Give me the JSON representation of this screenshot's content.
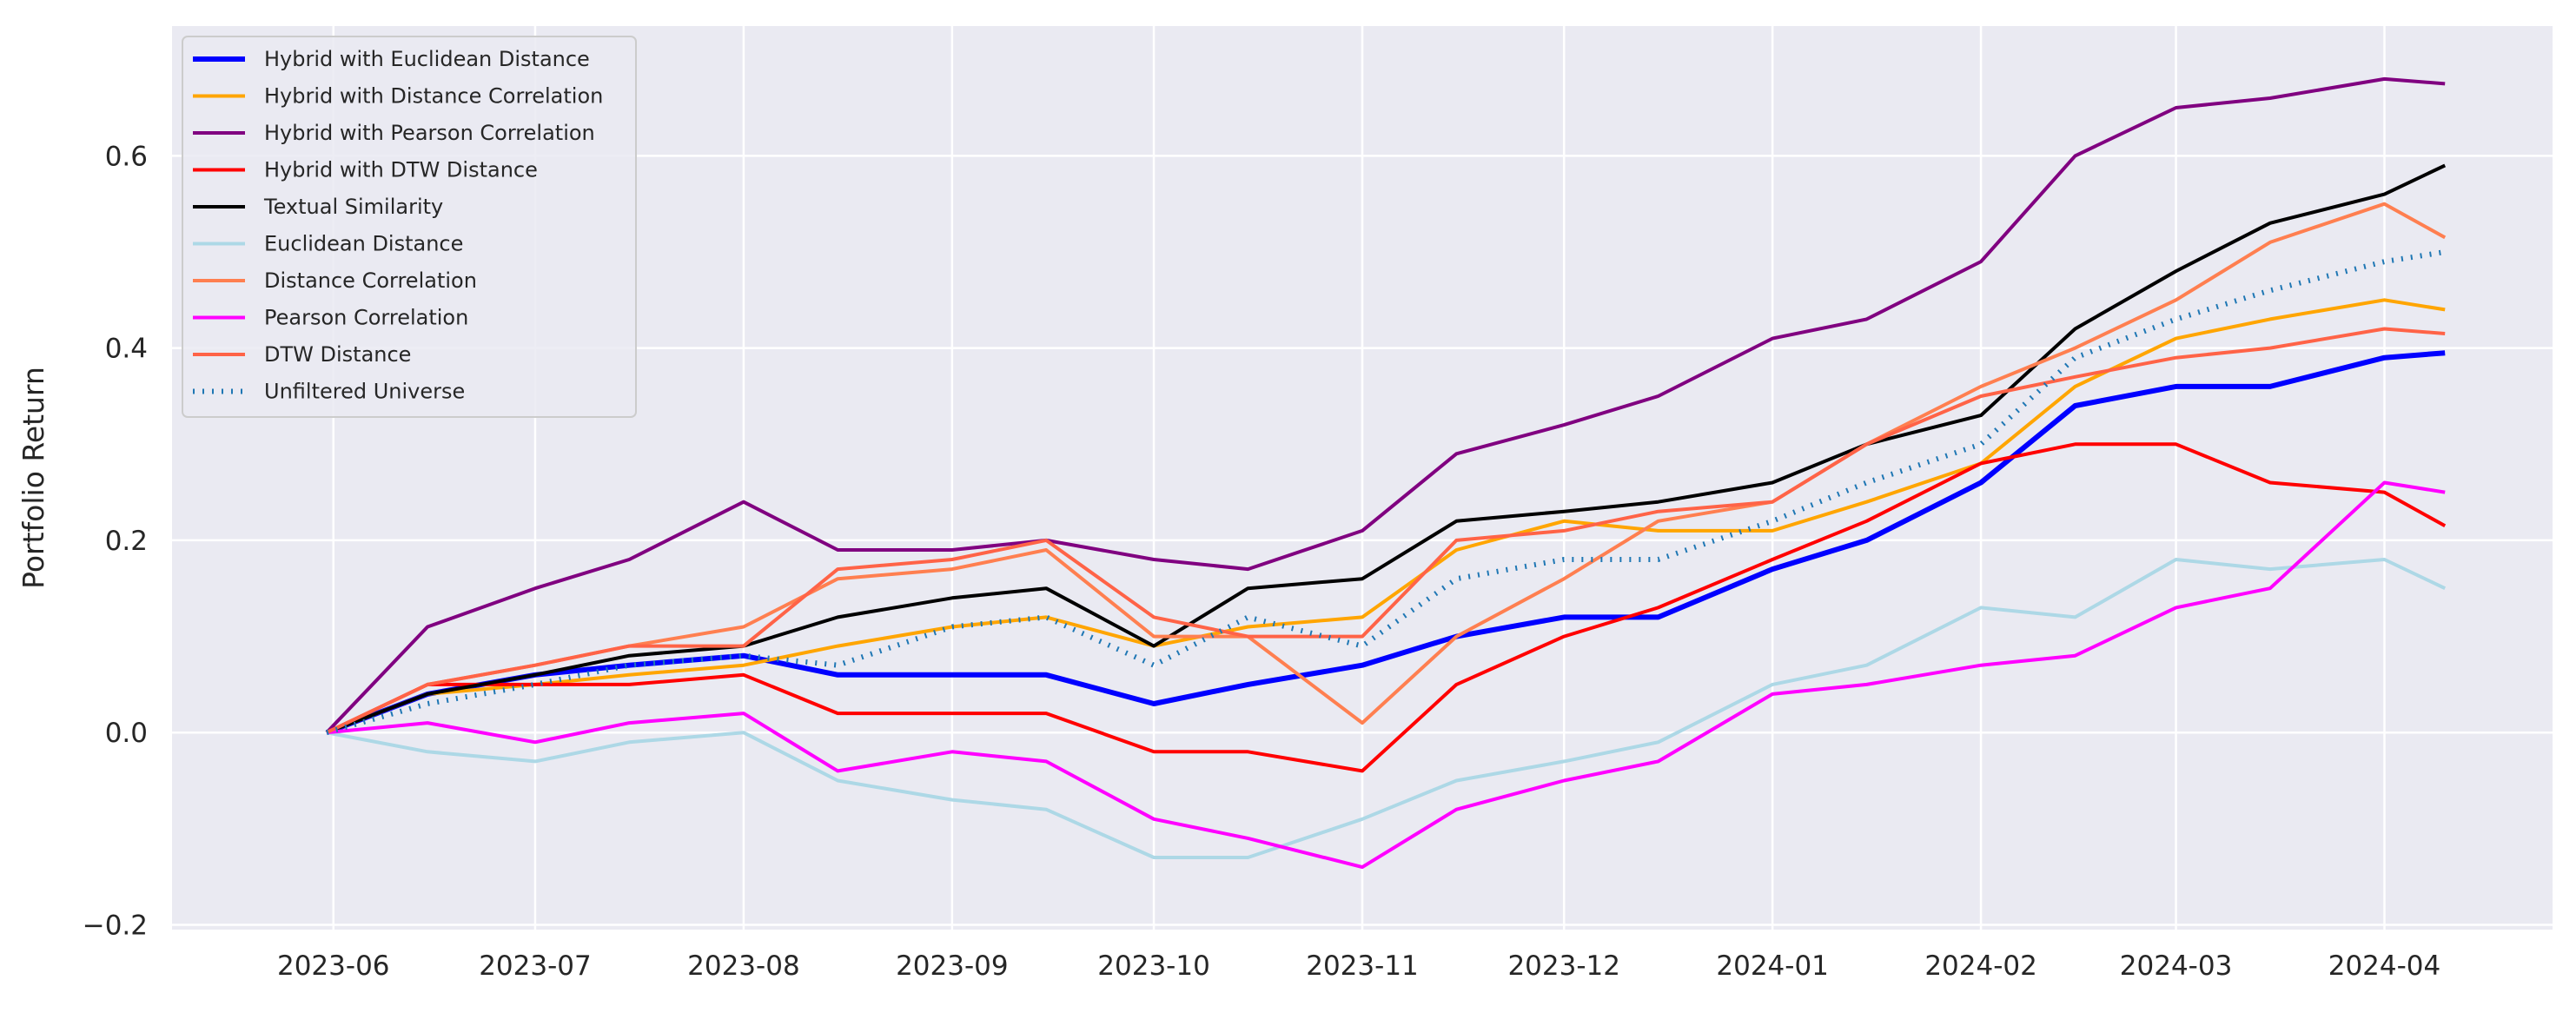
{
  "chart_data": {
    "type": "line",
    "title": "",
    "xlabel": "",
    "ylabel": "Portfolio Return",
    "x_ticks": [
      "2023-06",
      "2023-07",
      "2023-08",
      "2023-09",
      "2023-10",
      "2023-11",
      "2023-12",
      "2024-01",
      "2024-02",
      "2024-03",
      "2024-04"
    ],
    "y_ticks": [
      "−0.2",
      "0.0",
      "0.2",
      "0.4",
      "0.6"
    ],
    "xlim": [
      "2023-05-08",
      "2024-04-26"
    ],
    "ylim": [
      -0.205,
      0.735
    ],
    "grid": true,
    "legend_position": "top-left",
    "x": [
      "2023-05-31",
      "2023-06-15",
      "2023-07-01",
      "2023-07-15",
      "2023-08-01",
      "2023-08-15",
      "2023-09-01",
      "2023-09-15",
      "2023-10-01",
      "2023-10-15",
      "2023-11-01",
      "2023-11-15",
      "2023-12-01",
      "2023-12-15",
      "2024-01-01",
      "2024-01-15",
      "2024-02-01",
      "2024-02-15",
      "2024-03-01",
      "2024-03-15",
      "2024-04-01",
      "2024-04-10"
    ],
    "series": [
      {
        "name": "Hybrid with Euclidean Distance",
        "color": "#0000ff",
        "width": 6,
        "dash": "",
        "values": [
          0.0,
          0.04,
          0.06,
          0.07,
          0.08,
          0.06,
          0.06,
          0.06,
          0.03,
          0.05,
          0.07,
          0.1,
          0.12,
          0.12,
          0.17,
          0.2,
          0.26,
          0.34,
          0.36,
          0.36,
          0.39,
          0.395
        ]
      },
      {
        "name": "Hybrid with Distance Correlation",
        "color": "#ffa500",
        "width": 4,
        "dash": "",
        "values": [
          0.0,
          0.04,
          0.05,
          0.06,
          0.07,
          0.09,
          0.11,
          0.12,
          0.09,
          0.11,
          0.12,
          0.19,
          0.22,
          0.21,
          0.21,
          0.24,
          0.28,
          0.36,
          0.41,
          0.43,
          0.45,
          0.44
        ]
      },
      {
        "name": "Hybrid with Pearson Correlation",
        "color": "#800080",
        "width": 4,
        "dash": "",
        "values": [
          0.0,
          0.11,
          0.15,
          0.18,
          0.24,
          0.19,
          0.19,
          0.2,
          0.18,
          0.17,
          0.21,
          0.29,
          0.32,
          0.35,
          0.41,
          0.43,
          0.49,
          0.6,
          0.65,
          0.66,
          0.68,
          0.675
        ]
      },
      {
        "name": "Hybrid with DTW Distance",
        "color": "#ff0000",
        "width": 4,
        "dash": "",
        "values": [
          0.0,
          0.05,
          0.05,
          0.05,
          0.06,
          0.02,
          0.02,
          0.02,
          -0.02,
          -0.02,
          -0.04,
          0.05,
          0.1,
          0.13,
          0.18,
          0.22,
          0.28,
          0.3,
          0.3,
          0.26,
          0.25,
          0.215
        ]
      },
      {
        "name": "Textual Similarity",
        "color": "#000000",
        "width": 4,
        "dash": "",
        "values": [
          0.0,
          0.04,
          0.06,
          0.08,
          0.09,
          0.12,
          0.14,
          0.15,
          0.09,
          0.15,
          0.16,
          0.22,
          0.23,
          0.24,
          0.26,
          0.3,
          0.33,
          0.42,
          0.48,
          0.53,
          0.56,
          0.59
        ]
      },
      {
        "name": "Euclidean Distance",
        "color": "#add8e6",
        "width": 4,
        "dash": "",
        "values": [
          0.0,
          -0.02,
          -0.03,
          -0.01,
          0.0,
          -0.05,
          -0.07,
          -0.08,
          -0.13,
          -0.13,
          -0.09,
          -0.05,
          -0.03,
          -0.01,
          0.05,
          0.07,
          0.13,
          0.12,
          0.18,
          0.17,
          0.18,
          0.15
        ]
      },
      {
        "name": "Distance Correlation",
        "color": "#ff7f50",
        "width": 4,
        "dash": "",
        "values": [
          0.0,
          0.05,
          0.07,
          0.09,
          0.11,
          0.16,
          0.17,
          0.19,
          0.1,
          0.1,
          0.01,
          0.1,
          0.16,
          0.22,
          0.24,
          0.3,
          0.36,
          0.4,
          0.45,
          0.51,
          0.55,
          0.515
        ]
      },
      {
        "name": "Pearson Correlation",
        "color": "#ff00ff",
        "width": 4,
        "dash": "",
        "values": [
          0.0,
          0.01,
          -0.01,
          0.01,
          0.02,
          -0.04,
          -0.02,
          -0.03,
          -0.09,
          -0.11,
          -0.14,
          -0.08,
          -0.05,
          -0.03,
          0.04,
          0.05,
          0.07,
          0.08,
          0.13,
          0.15,
          0.26,
          0.25
        ]
      },
      {
        "name": "DTW Distance",
        "color": "#ff6347",
        "width": 4,
        "dash": "",
        "values": [
          0.0,
          0.05,
          0.07,
          0.09,
          0.09,
          0.17,
          0.18,
          0.2,
          0.12,
          0.1,
          0.1,
          0.2,
          0.21,
          0.23,
          0.24,
          0.3,
          0.35,
          0.37,
          0.39,
          0.4,
          0.42,
          0.415
        ]
      },
      {
        "name": "Unfiltered Universe",
        "color": "#1f77b4",
        "width": 6,
        "dash": "2 9",
        "values": [
          0.0,
          0.03,
          0.05,
          0.07,
          0.08,
          0.07,
          0.11,
          0.12,
          0.07,
          0.12,
          0.09,
          0.16,
          0.18,
          0.18,
          0.22,
          0.26,
          0.3,
          0.39,
          0.43,
          0.46,
          0.49,
          0.5
        ]
      }
    ]
  }
}
